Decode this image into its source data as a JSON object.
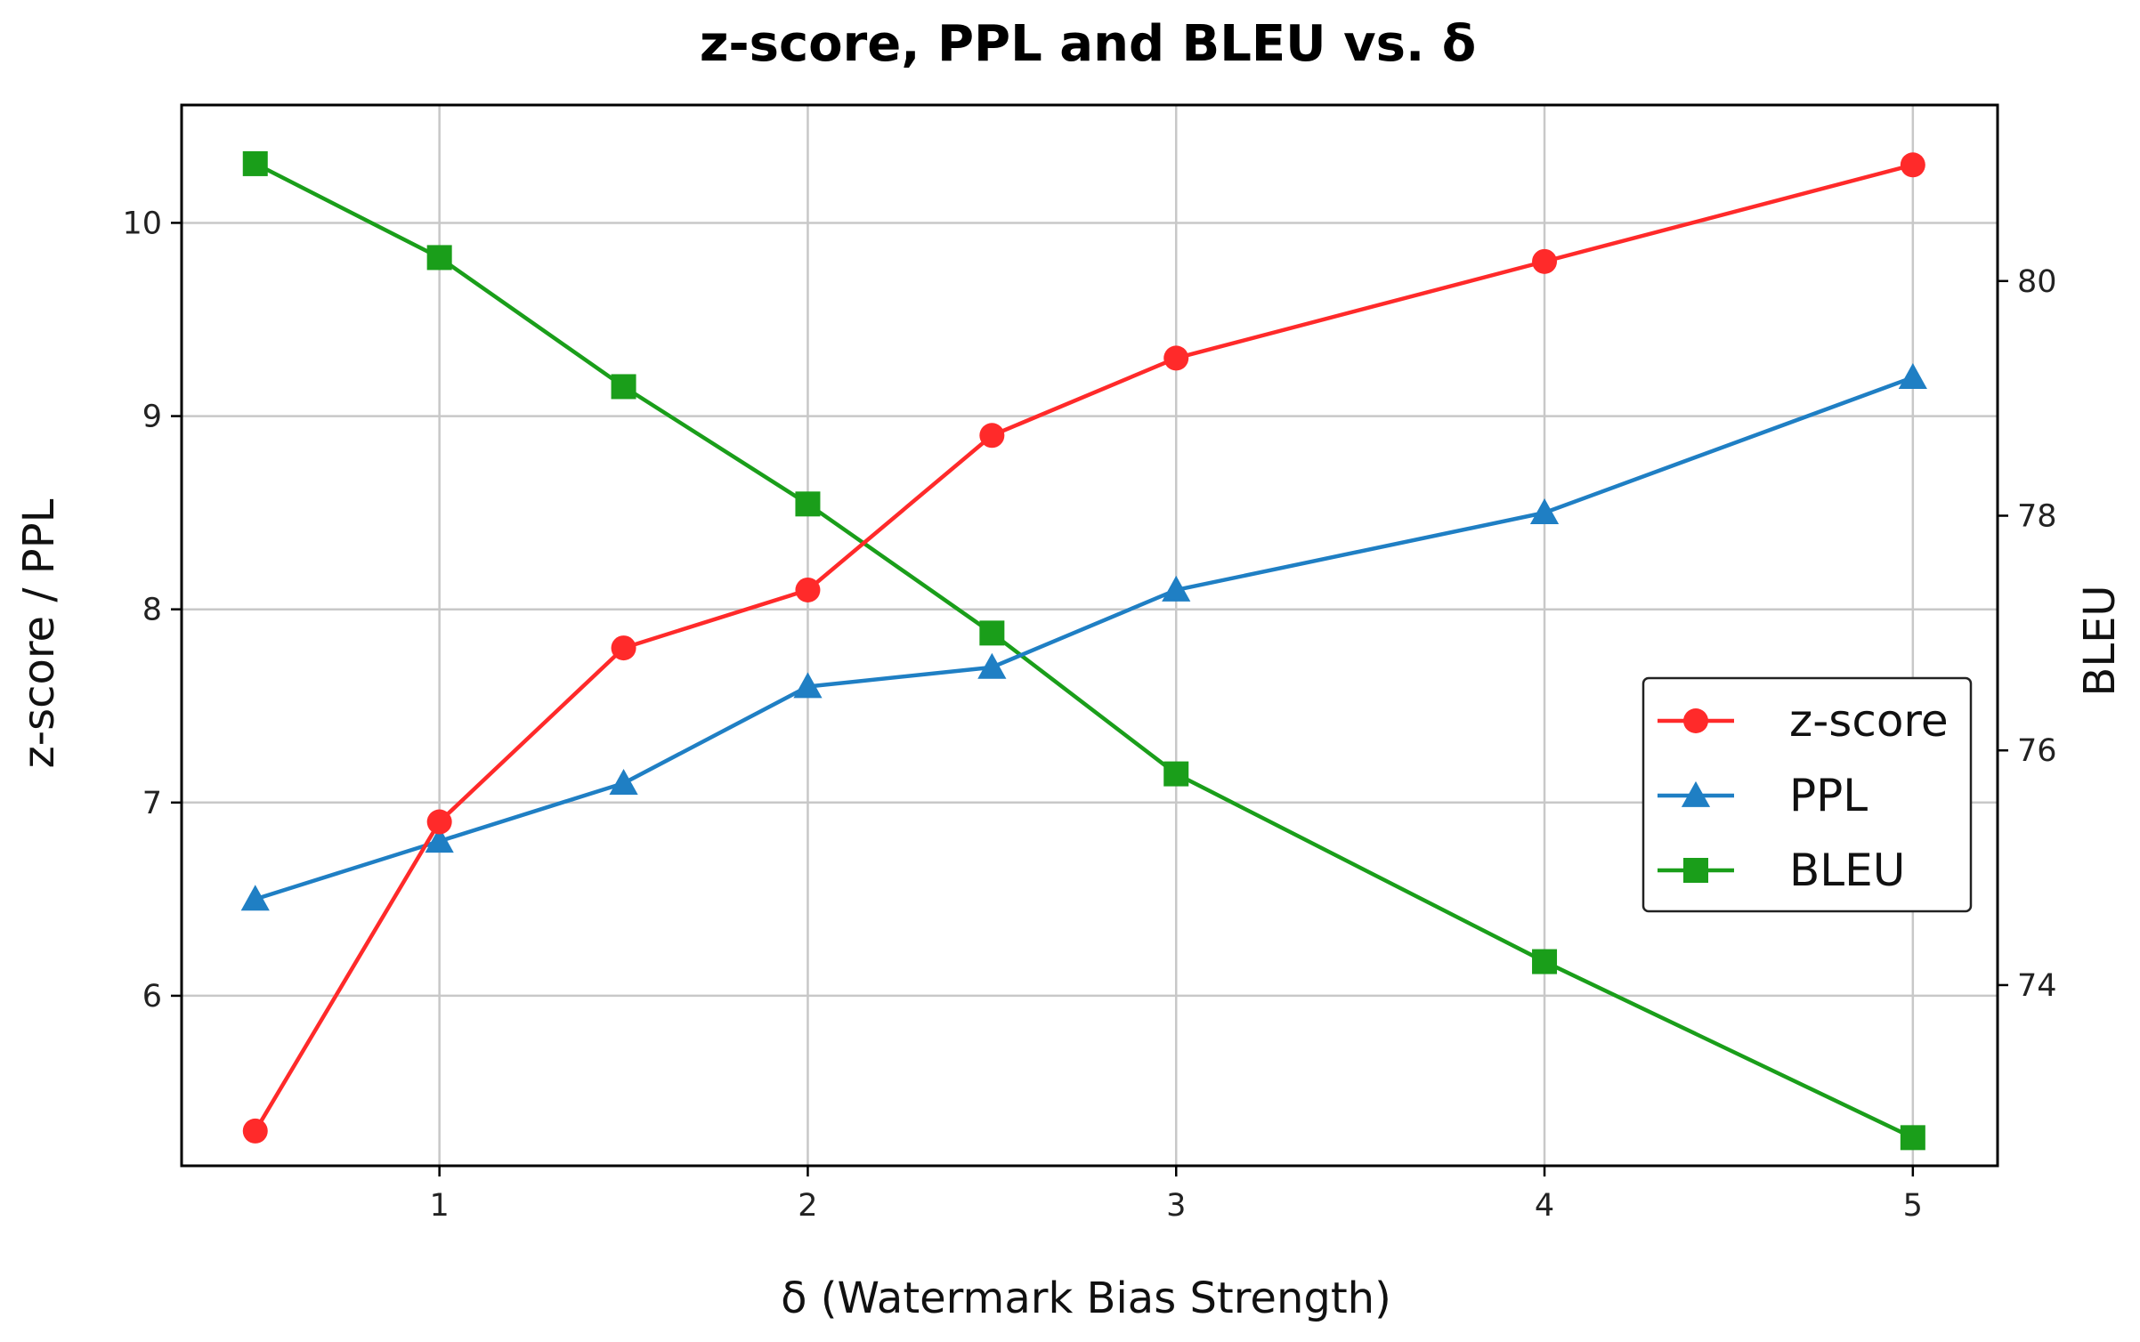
{
  "chart_data": {
    "type": "line",
    "title": "z-score, PPL and BLEU vs. δ",
    "xlabel": "δ (Watermark Bias Strength)",
    "ylabel": "z-score / PPL",
    "ylabel_right": "BLEU",
    "x": [
      0.5,
      1,
      1.5,
      2,
      2.5,
      3,
      4,
      5
    ],
    "xlim": [
      0.3,
      5.23
    ],
    "xticks": [
      1,
      2,
      3,
      4,
      5
    ],
    "ylim": [
      5.12,
      10.61
    ],
    "yticks": [
      6,
      7,
      8,
      9,
      10
    ],
    "ylim_right": [
      72.46,
      81.5
    ],
    "yticks_right": [
      74,
      76,
      78,
      80
    ],
    "grid": true,
    "legend_position": "center-right",
    "series": [
      {
        "name": "z-score",
        "axis": "left",
        "marker": "circle",
        "color": "#ff2a2a",
        "values": [
          5.3,
          6.9,
          7.8,
          8.1,
          8.9,
          9.3,
          9.8,
          10.3
        ]
      },
      {
        "name": "PPL",
        "axis": "left",
        "marker": "triangle",
        "color": "#1f7fc4",
        "values": [
          6.5,
          6.8,
          7.1,
          7.6,
          7.7,
          8.1,
          8.5,
          9.2
        ]
      },
      {
        "name": "BLEU",
        "axis": "right",
        "marker": "square",
        "color": "#1a9e1a",
        "values": [
          81.0,
          80.2,
          79.1,
          78.1,
          77.0,
          75.8,
          74.2,
          72.7
        ]
      }
    ]
  }
}
